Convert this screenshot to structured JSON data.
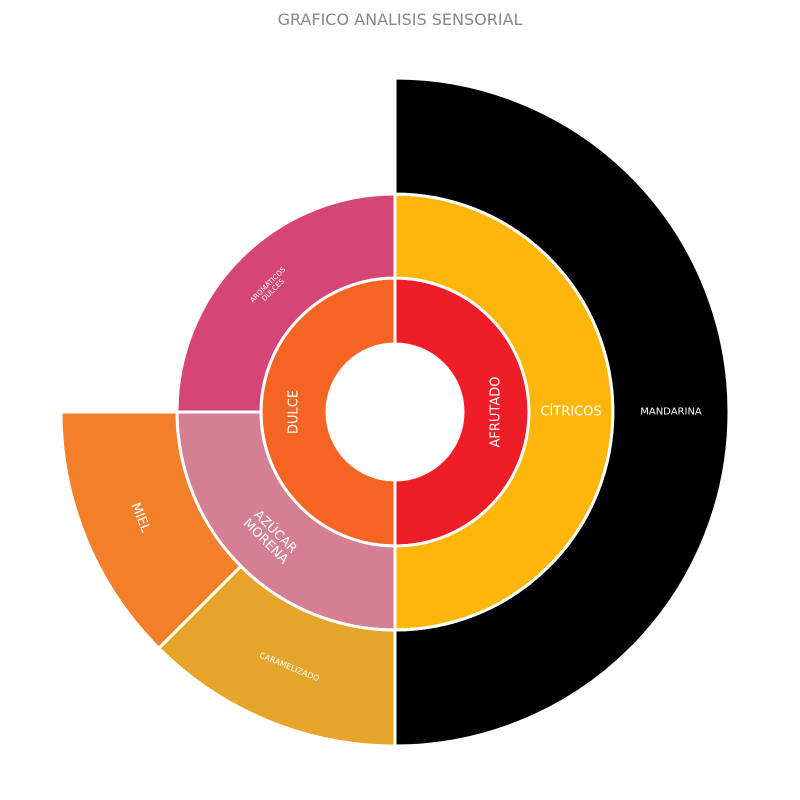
{
  "chart_data": {
    "type": "sunburst",
    "title": "GRAFICO ANALISIS SENSORIAL",
    "rings": [
      [
        {
          "label": "AFRUTADO",
          "start": 0,
          "end": 180,
          "color": "#ef1d27",
          "font": 13
        },
        {
          "label": "DULCE",
          "start": 180,
          "end": 360,
          "color": "#f46524",
          "font": 13
        }
      ],
      [
        {
          "label": "CÍTRICOS",
          "start": 0,
          "end": 180,
          "color": "#ffb60a",
          "font": 13
        },
        {
          "label": "AZÚCAR MORENA",
          "start": 180,
          "end": 270,
          "color": "#d57f94",
          "font": 13
        },
        {
          "label": "AROMÁTICOS DULCES",
          "start": 270,
          "end": 360,
          "color": "#d54575",
          "font": 7
        }
      ],
      [
        {
          "label": "MANDARINA",
          "start": 0,
          "end": 180,
          "color": "#000000",
          "font": 10
        },
        {
          "label": "CARAMELIZADO",
          "start": 180,
          "end": 225,
          "color": "#e5a52a",
          "font": 8
        },
        {
          "label": "MIEL",
          "start": 225,
          "end": 270,
          "color": "#f47f2b",
          "font": 13
        }
      ]
    ]
  }
}
